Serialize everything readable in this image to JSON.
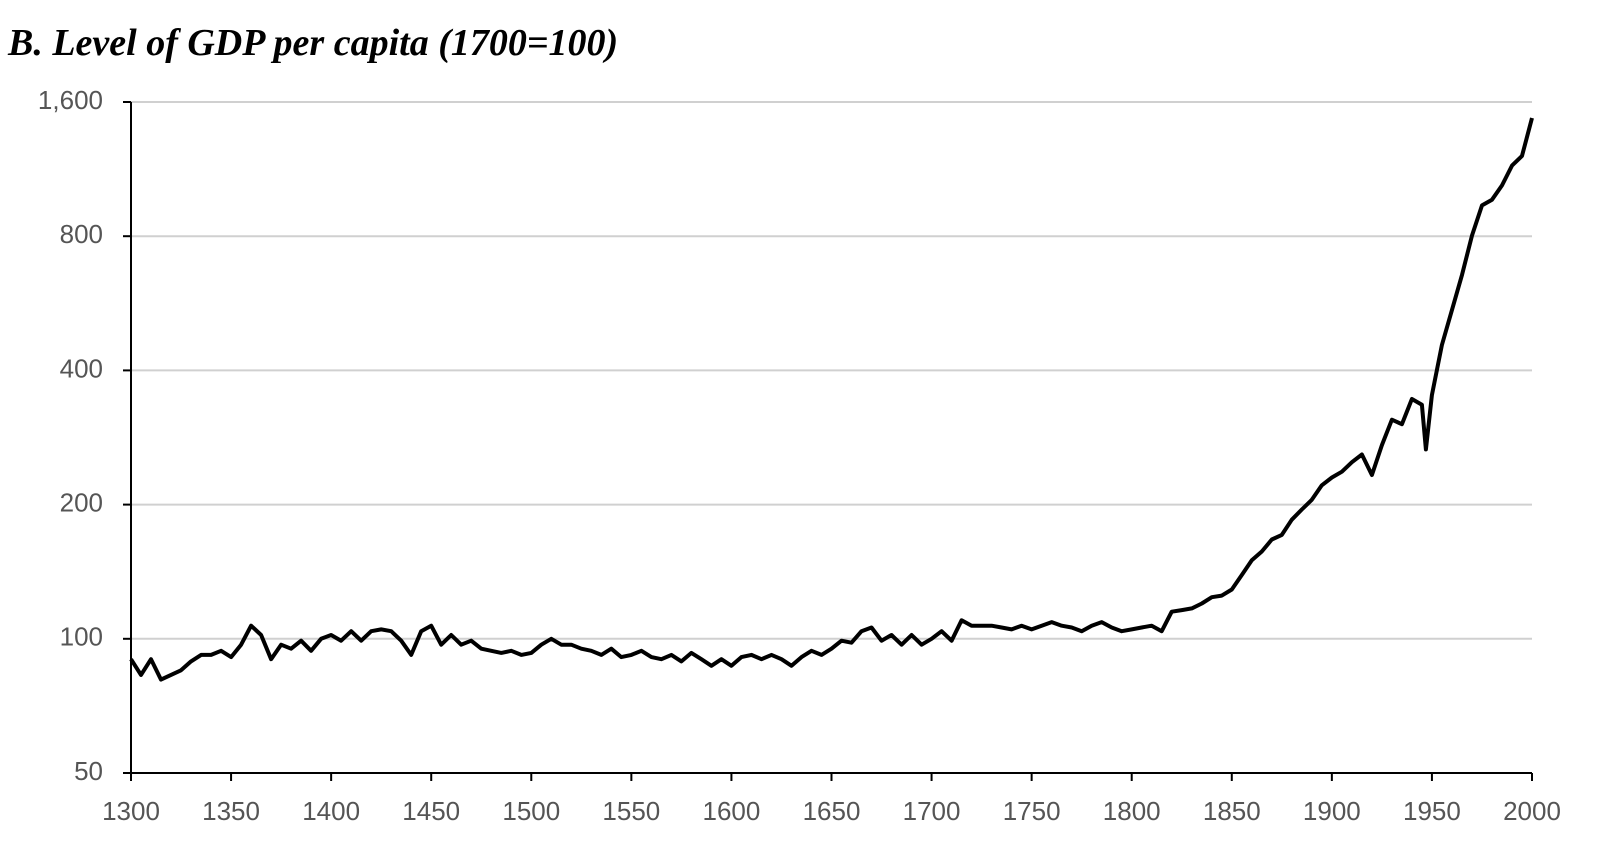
{
  "chart_data": {
    "type": "line",
    "title": "B. Level of GDP per capita (1700=100)",
    "x": [
      1300,
      1305,
      1310,
      1315,
      1320,
      1325,
      1330,
      1335,
      1340,
      1345,
      1350,
      1355,
      1360,
      1365,
      1370,
      1375,
      1380,
      1385,
      1390,
      1395,
      1400,
      1405,
      1410,
      1415,
      1420,
      1425,
      1430,
      1435,
      1440,
      1445,
      1450,
      1455,
      1460,
      1465,
      1470,
      1475,
      1480,
      1485,
      1490,
      1495,
      1500,
      1505,
      1510,
      1515,
      1520,
      1525,
      1530,
      1535,
      1540,
      1545,
      1550,
      1555,
      1560,
      1565,
      1570,
      1575,
      1580,
      1585,
      1590,
      1595,
      1600,
      1605,
      1610,
      1615,
      1620,
      1625,
      1630,
      1635,
      1640,
      1645,
      1650,
      1655,
      1660,
      1665,
      1670,
      1675,
      1680,
      1685,
      1690,
      1695,
      1700,
      1705,
      1710,
      1715,
      1720,
      1725,
      1730,
      1735,
      1740,
      1745,
      1750,
      1755,
      1760,
      1765,
      1770,
      1775,
      1780,
      1785,
      1790,
      1795,
      1800,
      1805,
      1810,
      1815,
      1820,
      1825,
      1830,
      1835,
      1840,
      1845,
      1850,
      1855,
      1860,
      1865,
      1870,
      1875,
      1880,
      1885,
      1890,
      1895,
      1900,
      1905,
      1910,
      1915,
      1920,
      1925,
      1930,
      1935,
      1940,
      1945,
      1947,
      1950,
      1955,
      1960,
      1965,
      1970,
      1975,
      1980,
      1985,
      1990,
      1995,
      2000
    ],
    "series": [
      {
        "name": "GDP per capita",
        "color": "#000000",
        "values": [
          90,
          83,
          90,
          81,
          83,
          85,
          89,
          92,
          92,
          94,
          91,
          97,
          107,
          102,
          90,
          97,
          95,
          99,
          94,
          100,
          102,
          99,
          104,
          99,
          104,
          105,
          104,
          99,
          92,
          104,
          107,
          97,
          102,
          97,
          99,
          95,
          94,
          93,
          94,
          92,
          93,
          97,
          100,
          97,
          97,
          95,
          94,
          92,
          95,
          91,
          92,
          94,
          91,
          90,
          92,
          89,
          93,
          90,
          87,
          90,
          87,
          91,
          92,
          90,
          92,
          90,
          87,
          91,
          94,
          92,
          95,
          99,
          98,
          104,
          106,
          99,
          102,
          97,
          102,
          97,
          100,
          104,
          99,
          110,
          107,
          107,
          107,
          106,
          105,
          107,
          105,
          107,
          109,
          107,
          106,
          104,
          107,
          109,
          106,
          104,
          105,
          106,
          107,
          104,
          115,
          116,
          117,
          120,
          124,
          125,
          129,
          139,
          150,
          157,
          167,
          171,
          185,
          195,
          205,
          221,
          230,
          237,
          249,
          259,
          233,
          272,
          310,
          303,
          345,
          335,
          266,
          352,
          456,
          546,
          655,
          803,
          938,
          966,
          1040,
          1152,
          1211,
          1473
        ]
      }
    ],
    "ylog": true,
    "xlim": [
      1300,
      2000
    ],
    "xticks": [
      1300,
      1350,
      1400,
      1450,
      1500,
      1550,
      1600,
      1650,
      1700,
      1750,
      1800,
      1850,
      1900,
      1950,
      2000
    ],
    "ylim": [
      50,
      1600
    ],
    "yticks": [
      50,
      100,
      200,
      400,
      800,
      {
        "value": 1600,
        "label": "1,600"
      }
    ],
    "grid": true
  }
}
